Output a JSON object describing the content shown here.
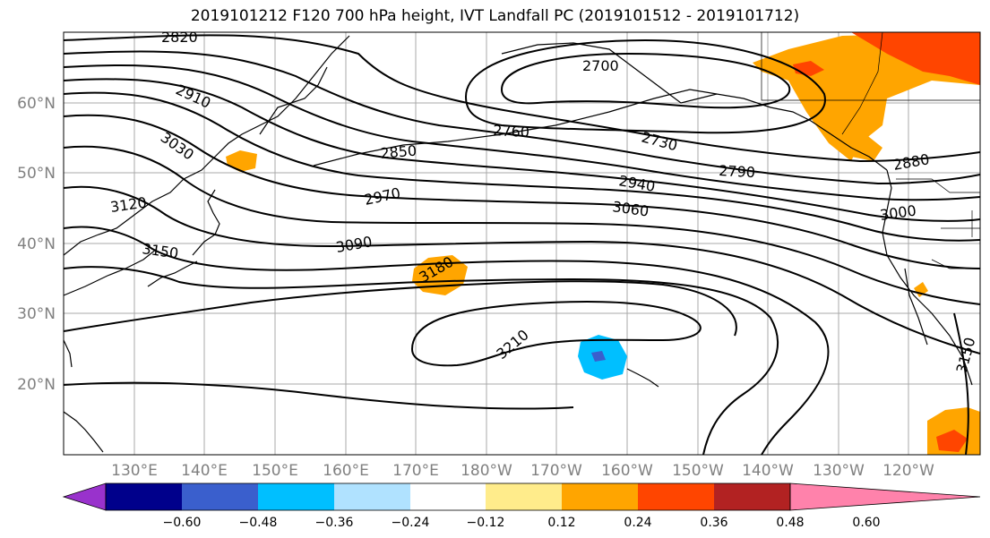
{
  "title": "2019101212 F120 700 hPa height, IVT Landfall PC (2019101512 - 2019101712)",
  "lat_labels": [
    "60°N",
    "50°N",
    "40°N",
    "30°N",
    "20°N"
  ],
  "lon_labels": [
    "130°E",
    "140°E",
    "150°E",
    "160°E",
    "170°E",
    "180°W",
    "170°W",
    "160°W",
    "150°W",
    "140°W",
    "130°W",
    "120°W"
  ],
  "contour_labels": [
    "2820",
    "2700",
    "2910",
    "3030",
    "2760",
    "2730",
    "2850",
    "2790",
    "2880",
    "2940",
    "2970",
    "3060",
    "3000",
    "3120",
    "3090",
    "3150",
    "3180",
    "3210",
    "3150"
  ],
  "colorbar": {
    "ticks": [
      "−0.60",
      "−0.48",
      "−0.36",
      "−0.24",
      "−0.12",
      "0.12",
      "0.24",
      "0.36",
      "0.48",
      "0.60"
    ],
    "colors": [
      "#9932cc",
      "#00008b",
      "#3a5fcd",
      "#00bfff",
      "#b0e2ff",
      "#ffffff",
      "#ffec8b",
      "#ffa500",
      "#ff4500",
      "#b22222",
      "#ff82ab"
    ]
  }
}
